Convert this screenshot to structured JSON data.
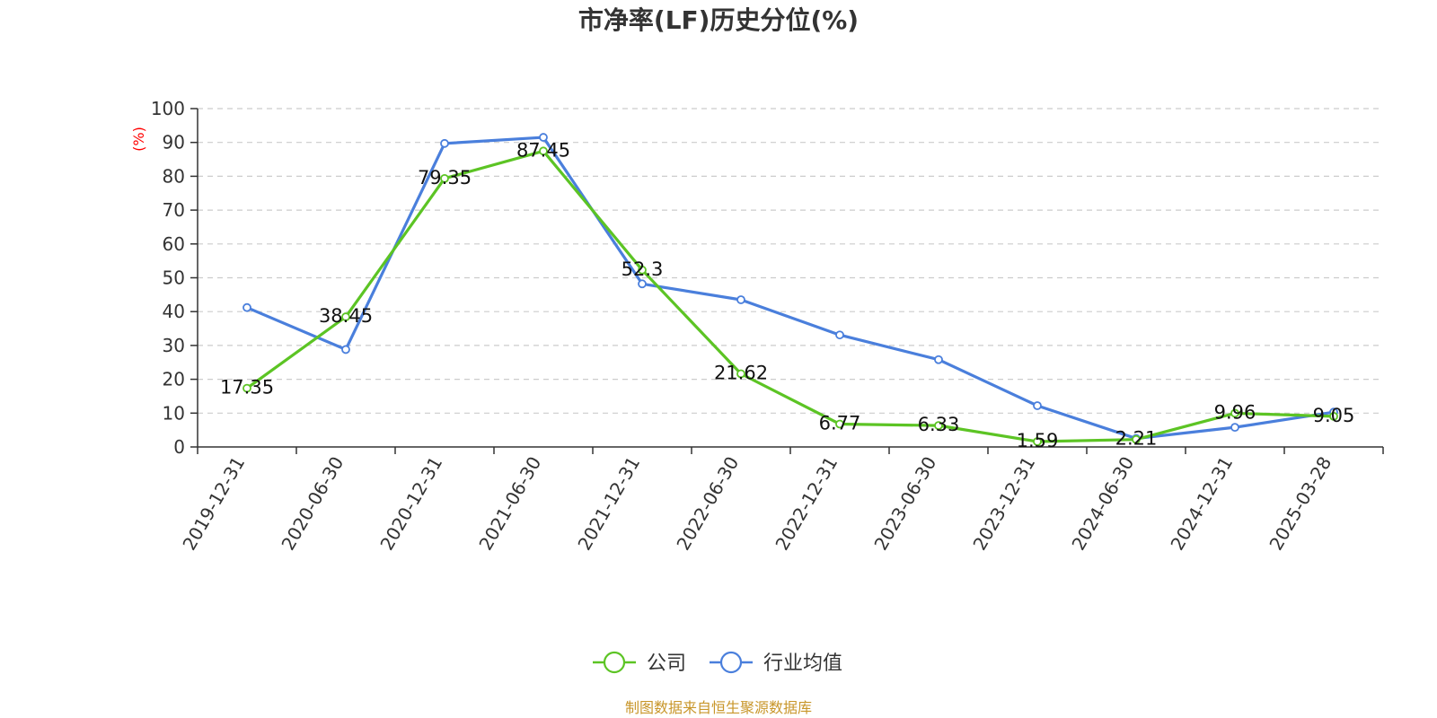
{
  "chart_data": {
    "type": "line",
    "title": "市净率(LF)历史分位(%)",
    "y_unit_label": "(%)",
    "ylim": [
      0,
      100
    ],
    "y_ticks": [
      0,
      10,
      20,
      30,
      40,
      50,
      60,
      70,
      80,
      90,
      100
    ],
    "grid": "horizontal dashed",
    "categories": [
      "2019-12-31",
      "2020-06-30",
      "2020-12-31",
      "2021-06-30",
      "2021-12-31",
      "2022-06-30",
      "2022-12-31",
      "2023-06-30",
      "2023-12-31",
      "2024-06-30",
      "2024-12-31",
      "2025-03-28"
    ],
    "series": [
      {
        "name": "公司",
        "color": "#5cc424",
        "values": [
          17.35,
          38.45,
          79.35,
          87.45,
          52.3,
          21.62,
          6.77,
          6.33,
          1.59,
          2.21,
          9.96,
          9.05
        ],
        "labels": [
          "17.35",
          "38.45",
          "79.35",
          "87.45",
          "52.3",
          "21.62",
          "6.77",
          "6.33",
          "1.59",
          "2.21",
          "9.96",
          "9.05"
        ]
      },
      {
        "name": "行业均值",
        "color": "#4a7fdc",
        "values": [
          41.2,
          28.8,
          89.7,
          91.5,
          48.2,
          43.5,
          33.1,
          25.8,
          12.2,
          2.5,
          5.8,
          10.3
        ]
      }
    ],
    "legend_position": "bottom-center",
    "source": "制图数据来自恒生聚源数据库"
  }
}
